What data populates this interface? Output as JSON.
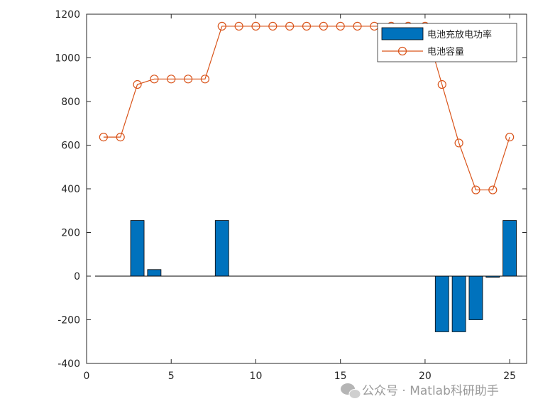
{
  "chart_data": {
    "type": "bar",
    "x": [
      1,
      2,
      3,
      4,
      5,
      6,
      7,
      8,
      9,
      10,
      11,
      12,
      13,
      14,
      15,
      16,
      17,
      18,
      19,
      20,
      21,
      22,
      23,
      24,
      25
    ],
    "series": [
      {
        "name": "电池充放电功率",
        "type": "bar",
        "color": "#0072BD",
        "values": [
          0,
          0,
          255,
          30,
          0,
          0,
          0,
          255,
          0,
          0,
          0,
          0,
          0,
          0,
          0,
          0,
          0,
          0,
          0,
          0,
          -255,
          -255,
          -200,
          -5,
          255
        ]
      },
      {
        "name": "电池容量",
        "type": "line",
        "marker": "circle",
        "color": "#D95319",
        "values": [
          637,
          637,
          878,
          903,
          903,
          903,
          903,
          1145,
          1145,
          1145,
          1145,
          1145,
          1145,
          1145,
          1145,
          1145,
          1145,
          1145,
          1145,
          1145,
          878,
          610,
          395,
          395,
          637
        ]
      }
    ],
    "xlim": [
      0,
      26
    ],
    "ylim": [
      -400,
      1200
    ],
    "xticks": [
      "0",
      "5",
      "10",
      "15",
      "20",
      "25"
    ],
    "yticks": [
      "-400",
      "-200",
      "0",
      "200",
      "400",
      "600",
      "800",
      "1000",
      "1200"
    ],
    "grid": false,
    "legend_position": "top-right"
  },
  "watermark": {
    "text": "公众号 · Matlab科研助手",
    "icon": "wechat-icon"
  }
}
